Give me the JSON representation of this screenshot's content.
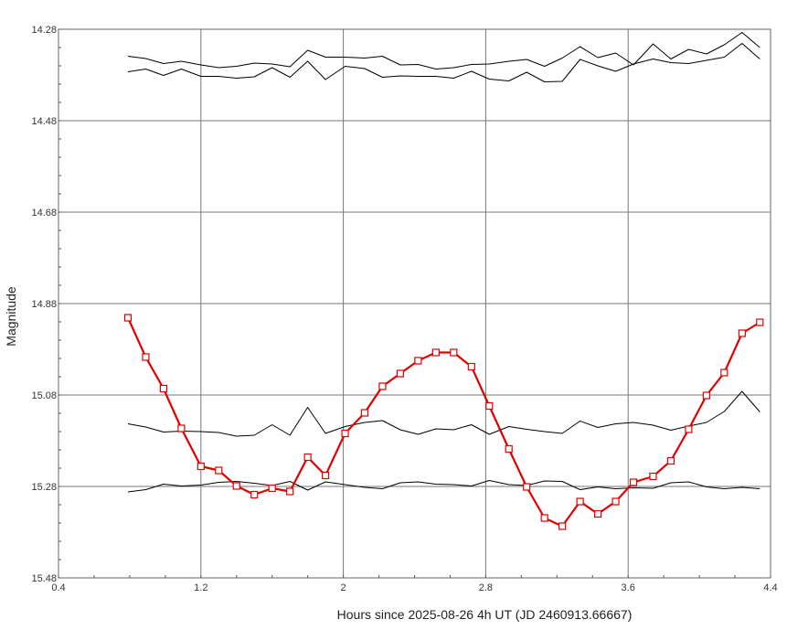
{
  "chart_data": {
    "type": "line",
    "xlabel": "Hours since 2025-08-26 4h UT (JD 2460913.66667)",
    "ylabel": "Magnitude",
    "xlim": [
      0.4,
      4.4
    ],
    "ylim": [
      14.28,
      15.48
    ],
    "y_inverted": true,
    "grid": true,
    "x_ticks": [
      0.4,
      1.2,
      2,
      2.8,
      3.6,
      4.4
    ],
    "x_tick_labels": [
      "0.4",
      "1.2",
      "2",
      "2.8",
      "3.6",
      "4.4"
    ],
    "y_ticks": [
      14.28,
      14.48,
      14.68,
      14.88,
      15.08,
      15.28,
      15.48
    ],
    "y_tick_labels": [
      "14.28",
      "14.48",
      "14.68",
      "14.88",
      "15.08",
      "15.28",
      "15.48"
    ],
    "x": [
      0.79,
      0.89,
      0.99,
      1.09,
      1.2,
      1.3,
      1.4,
      1.5,
      1.6,
      1.7,
      1.8,
      1.9,
      2.01,
      2.12,
      2.22,
      2.32,
      2.42,
      2.52,
      2.62,
      2.72,
      2.82,
      2.93,
      3.03,
      3.13,
      3.23,
      3.33,
      3.43,
      3.53,
      3.63,
      3.74,
      3.84,
      3.94,
      4.04,
      4.14,
      4.24,
      4.34
    ],
    "series": [
      {
        "color": "#e00000",
        "markers": true,
        "values": [
          14.911,
          14.997,
          15.066,
          15.153,
          15.236,
          15.245,
          15.279,
          15.298,
          15.284,
          15.291,
          15.216,
          15.256,
          15.164,
          15.119,
          15.061,
          15.033,
          15.005,
          14.987,
          14.987,
          15.018,
          15.104,
          15.198,
          15.281,
          15.349,
          15.367,
          15.313,
          15.34,
          15.313,
          15.271,
          15.258,
          15.224,
          15.155,
          15.081,
          15.031,
          14.945,
          14.921
        ]
      },
      {
        "color": "#000000",
        "markers": false,
        "values": [
          14.339,
          14.344,
          14.355,
          14.35,
          14.358,
          14.364,
          14.361,
          14.354,
          14.356,
          14.362,
          14.326,
          14.341,
          14.341,
          14.343,
          14.339,
          14.358,
          14.357,
          14.367,
          14.364,
          14.357,
          14.356,
          14.35,
          14.346,
          14.361,
          14.343,
          14.318,
          14.342,
          14.332,
          14.358,
          14.312,
          14.345,
          14.324,
          14.334,
          14.314,
          14.287,
          14.32
        ]
      },
      {
        "color": "#000000",
        "markers": false,
        "values": [
          14.373,
          14.367,
          14.381,
          14.367,
          14.383,
          14.383,
          14.387,
          14.384,
          14.364,
          14.385,
          14.35,
          14.39,
          14.361,
          14.366,
          14.385,
          14.382,
          14.383,
          14.383,
          14.387,
          14.372,
          14.389,
          14.393,
          14.374,
          14.395,
          14.394,
          14.346,
          14.36,
          14.372,
          14.356,
          14.345,
          14.353,
          14.355,
          14.348,
          14.341,
          14.311,
          14.345
        ]
      },
      {
        "color": "#000000",
        "markers": false,
        "values": [
          15.143,
          15.15,
          15.161,
          15.159,
          15.16,
          15.162,
          15.17,
          15.168,
          15.145,
          15.168,
          15.107,
          15.164,
          15.149,
          15.14,
          15.136,
          15.156,
          15.166,
          15.154,
          15.156,
          15.145,
          15.166,
          15.149,
          15.155,
          15.16,
          15.164,
          15.137,
          15.151,
          15.143,
          15.14,
          15.146,
          15.157,
          15.148,
          15.14,
          15.116,
          15.072,
          15.117
        ]
      },
      {
        "color": "#000000",
        "markers": false,
        "values": [
          15.292,
          15.287,
          15.275,
          15.279,
          15.277,
          15.271,
          15.269,
          15.273,
          15.278,
          15.269,
          15.288,
          15.27,
          15.276,
          15.282,
          15.285,
          15.272,
          15.27,
          15.275,
          15.276,
          15.279,
          15.267,
          15.276,
          15.278,
          15.268,
          15.269,
          15.287,
          15.281,
          15.285,
          15.283,
          15.284,
          15.272,
          15.27,
          15.281,
          15.285,
          15.282,
          15.285
        ]
      }
    ]
  }
}
